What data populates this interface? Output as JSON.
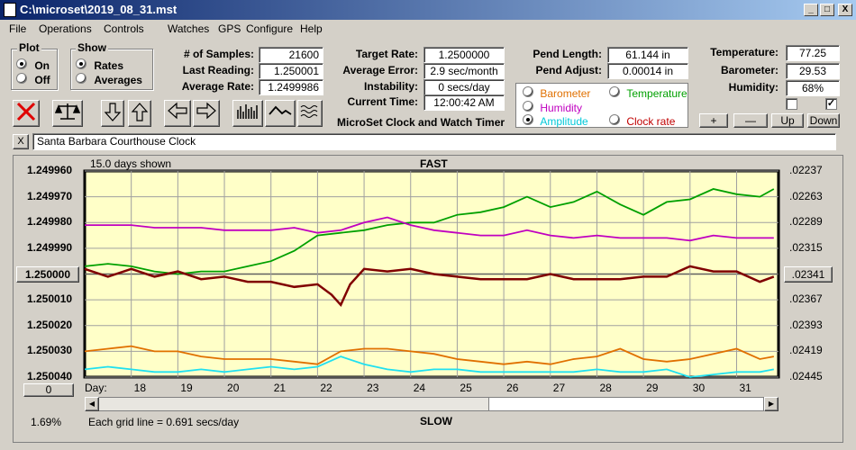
{
  "window": {
    "title": "C:\\microset\\2019_08_31.mst",
    "min": "_",
    "max": "□",
    "close": "X"
  },
  "menu": [
    "File",
    "Operations",
    "Controls",
    "Watches",
    "GPS",
    "Configure",
    "Help"
  ],
  "plot": {
    "label": "Plot",
    "on": "On",
    "off": "Off",
    "selected": "On"
  },
  "show": {
    "label": "Show",
    "rates": "Rates",
    "averages": "Averages",
    "selected": "Rates"
  },
  "stats1": {
    "samples_label": "# of Samples:",
    "samples": "21600",
    "last_label": "Last Reading:",
    "last": "1.250001",
    "avg_label": "Average Rate:",
    "avg": "1.2499986"
  },
  "stats2": {
    "target_label": "Target Rate:",
    "target": "1.2500000",
    "err_label": "Average Error:",
    "err": "2.9 sec/month",
    "inst_label": "Instability:",
    "inst": "0 secs/day",
    "time_label": "Current Time:",
    "time": "12:00:42 AM"
  },
  "app_label": "MicroSet Clock and Watch Timer",
  "pend": {
    "len_label": "Pend Length:",
    "len": "61.144 in",
    "adj_label": "Pend Adjust:",
    "adj": "0.00014 in"
  },
  "env": {
    "temp_label": "Temperature:",
    "temp": "77.25",
    "baro_label": "Barometer:",
    "baro": "29.53",
    "hum_label": "Humidity:",
    "hum": "68%"
  },
  "series_select": {
    "barometer": "Barometer",
    "temperature": "Temperature",
    "humidity": "Humidity",
    "amplitude": "Amplitude",
    "clockrate": "Clock rate",
    "selected": "Amplitude",
    "colors": {
      "barometer": "#e07000",
      "temperature": "#00a000",
      "humidity": "#c000c0",
      "amplitude": "#00c8d8",
      "clockrate": "#c00000"
    }
  },
  "nav_buttons": {
    "plus": "+",
    "minus": "—",
    "up": "Up",
    "down": "Down"
  },
  "clock_name": "Santa Barbara Courthouse Clock",
  "close_small": "X",
  "chart_data": {
    "type": "line",
    "days_shown": "15.0 days shown",
    "top_label": "FAST",
    "bottom_label": "SLOW",
    "left_ticks": [
      "1.249960",
      "1.249970",
      "1.249980",
      "1.249990",
      "1.250000",
      "1.250010",
      "1.250020",
      "1.250030",
      "1.250040"
    ],
    "selected_left": "1.250000",
    "right_ticks": [
      ".02237",
      ".02263",
      ".02289",
      ".02315",
      ".02341",
      ".02367",
      ".02393",
      ".02419",
      ".02445"
    ],
    "selected_right": ".02341",
    "x_prefix": "Day:",
    "days": [
      "18",
      "19",
      "20",
      "21",
      "22",
      "23",
      "24",
      "25",
      "26",
      "27",
      "28",
      "29",
      "30",
      "31"
    ],
    "scroll_value": "0",
    "pct": "1.69%",
    "footnote": "Each grid line = 0.691 secs/day",
    "ylim": [
      1.24996,
      1.25004
    ],
    "series": [
      {
        "name": "Temperature",
        "color": "#00a000",
        "x": [
          17.0,
          17.5,
          18.0,
          18.5,
          19.0,
          19.5,
          20.0,
          20.5,
          21.0,
          21.5,
          22.0,
          22.5,
          23.0,
          23.5,
          24.0,
          24.5,
          25.0,
          25.5,
          26.0,
          26.5,
          27.0,
          27.5,
          28.0,
          28.5,
          29.0,
          29.5,
          30.0,
          30.5,
          31.0,
          31.5,
          31.8
        ],
        "y": [
          1.249997,
          1.249996,
          1.249997,
          1.249999,
          1.25,
          1.249999,
          1.249999,
          1.249997,
          1.249995,
          1.249991,
          1.249985,
          1.249984,
          1.249983,
          1.249981,
          1.24998,
          1.24998,
          1.249977,
          1.249976,
          1.249974,
          1.24997,
          1.249974,
          1.249972,
          1.249968,
          1.249973,
          1.249977,
          1.249972,
          1.249971,
          1.249967,
          1.249969,
          1.24997,
          1.249967
        ]
      },
      {
        "name": "Humidity",
        "color": "#c000c0",
        "x": [
          17.0,
          17.5,
          18.0,
          18.5,
          19.0,
          19.5,
          20.0,
          20.5,
          21.0,
          21.5,
          22.0,
          22.5,
          23.0,
          23.5,
          24.0,
          24.5,
          25.0,
          25.5,
          26.0,
          26.5,
          27.0,
          27.5,
          28.0,
          28.5,
          29.0,
          29.5,
          30.0,
          30.5,
          31.0,
          31.5,
          31.8
        ],
        "y": [
          1.249981,
          1.249981,
          1.249981,
          1.249982,
          1.249982,
          1.249982,
          1.249983,
          1.249983,
          1.249983,
          1.249982,
          1.249984,
          1.249983,
          1.24998,
          1.249978,
          1.249981,
          1.249983,
          1.249984,
          1.249985,
          1.249985,
          1.249983,
          1.249985,
          1.249986,
          1.249985,
          1.249986,
          1.249986,
          1.249986,
          1.249987,
          1.249985,
          1.249986,
          1.249986,
          1.249986
        ]
      },
      {
        "name": "Clock rate",
        "color": "#800000",
        "x": [
          17.0,
          17.5,
          18.0,
          18.5,
          19.0,
          19.5,
          20.0,
          20.5,
          21.0,
          21.5,
          22.0,
          22.3,
          22.5,
          22.7,
          23.0,
          23.5,
          24.0,
          24.5,
          25.0,
          25.5,
          26.0,
          26.5,
          27.0,
          27.5,
          28.0,
          28.5,
          29.0,
          29.5,
          30.0,
          30.5,
          31.0,
          31.5,
          31.8
        ],
        "y": [
          1.249998,
          1.250001,
          1.249998,
          1.250001,
          1.249999,
          1.250002,
          1.250001,
          1.250003,
          1.250003,
          1.250005,
          1.250004,
          1.250008,
          1.250012,
          1.250004,
          1.249998,
          1.249999,
          1.249998,
          1.25,
          1.250001,
          1.250002,
          1.250002,
          1.250002,
          1.25,
          1.250002,
          1.250002,
          1.250002,
          1.250001,
          1.250001,
          1.249997,
          1.249999,
          1.249999,
          1.250003,
          1.250001
        ]
      },
      {
        "name": "Barometer",
        "color": "#e07000",
        "x": [
          17.0,
          17.5,
          18.0,
          18.5,
          19.0,
          19.5,
          20.0,
          20.5,
          21.0,
          21.5,
          22.0,
          22.5,
          23.0,
          23.5,
          24.0,
          24.5,
          25.0,
          25.5,
          26.0,
          26.5,
          27.0,
          27.5,
          28.0,
          28.5,
          29.0,
          29.5,
          30.0,
          30.5,
          31.0,
          31.5,
          31.8
        ],
        "y": [
          1.25003,
          1.250029,
          1.250028,
          1.25003,
          1.25003,
          1.250032,
          1.250033,
          1.250033,
          1.250033,
          1.250034,
          1.250035,
          1.25003,
          1.250029,
          1.250029,
          1.25003,
          1.250031,
          1.250033,
          1.250034,
          1.250035,
          1.250034,
          1.250035,
          1.250033,
          1.250032,
          1.250029,
          1.250033,
          1.250034,
          1.250033,
          1.250031,
          1.250029,
          1.250033,
          1.250032
        ]
      },
      {
        "name": "Amplitude",
        "color": "#20e0f0",
        "x": [
          17.0,
          17.5,
          18.0,
          18.5,
          19.0,
          19.5,
          20.0,
          20.5,
          21.0,
          21.5,
          22.0,
          22.5,
          23.0,
          23.5,
          24.0,
          24.5,
          25.0,
          25.5,
          26.0,
          26.5,
          27.0,
          27.5,
          28.0,
          28.5,
          29.0,
          29.5,
          30.0,
          30.5,
          31.0,
          31.5,
          31.8
        ],
        "y": [
          1.250037,
          1.250036,
          1.250037,
          1.250038,
          1.250038,
          1.250037,
          1.250038,
          1.250037,
          1.250036,
          1.250037,
          1.250036,
          1.250032,
          1.250035,
          1.250037,
          1.250038,
          1.250037,
          1.250037,
          1.250038,
          1.250038,
          1.250038,
          1.250038,
          1.250038,
          1.250037,
          1.250038,
          1.250038,
          1.250037,
          1.25004,
          1.250039,
          1.250038,
          1.250038,
          1.250037
        ]
      }
    ]
  }
}
